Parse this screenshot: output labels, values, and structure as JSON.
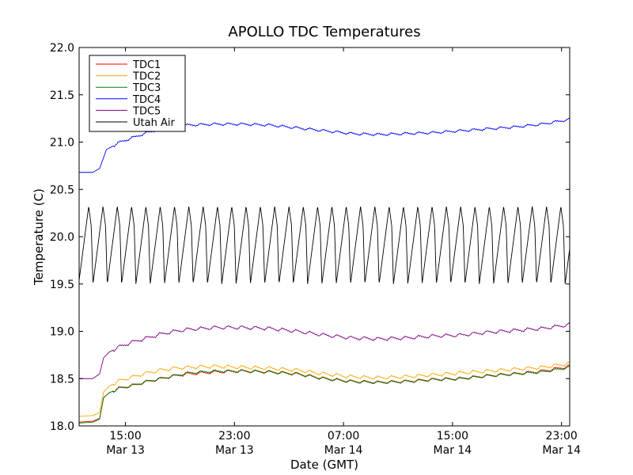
{
  "chart_data": {
    "type": "line",
    "title": "APOLLO TDC Temperatures",
    "xlabel": "Date (GMT)",
    "ylabel": "Temperature (C)",
    "xlim_hours": [
      0,
      36
    ],
    "ylim": [
      18.0,
      22.0
    ],
    "y_ticks": [
      {
        "value": 18.0,
        "label": "18.0"
      },
      {
        "value": 18.5,
        "label": "18.5"
      },
      {
        "value": 19.0,
        "label": "19.0"
      },
      {
        "value": 19.5,
        "label": "19.5"
      },
      {
        "value": 20.0,
        "label": "20.0"
      },
      {
        "value": 20.5,
        "label": "20.5"
      },
      {
        "value": 21.0,
        "label": "21.0"
      },
      {
        "value": 21.5,
        "label": "21.5"
      },
      {
        "value": 22.0,
        "label": "22.0"
      }
    ],
    "x_ticks": [
      {
        "hours": 3.4,
        "time": "15:00",
        "date": "Mar 13"
      },
      {
        "hours": 11.4,
        "time": "23:00",
        "date": "Mar 13"
      },
      {
        "hours": 19.4,
        "time": "07:00",
        "date": "Mar 14"
      },
      {
        "hours": 27.4,
        "time": "15:00",
        "date": "Mar 14"
      },
      {
        "hours": 35.4,
        "time": "23:00",
        "date": "Mar 14"
      }
    ],
    "legend_position": "top-left",
    "series": [
      {
        "name": "TDC1",
        "color": "#ff0000",
        "x": [
          0,
          1,
          1.5,
          1.8,
          2.2,
          3,
          4,
          5,
          6,
          7,
          8,
          10,
          12,
          14,
          16,
          18,
          20,
          22,
          24,
          26,
          28,
          30,
          32,
          34,
          36
        ],
        "y": [
          18.04,
          18.05,
          18.08,
          18.3,
          18.35,
          18.4,
          18.43,
          18.47,
          18.5,
          18.53,
          18.55,
          18.57,
          18.58,
          18.57,
          18.55,
          18.5,
          18.47,
          18.46,
          18.47,
          18.49,
          18.5,
          18.53,
          18.55,
          18.58,
          18.63
        ],
        "amp": 0.03
      },
      {
        "name": "TDC2",
        "color": "#ffa500",
        "x": [
          0,
          1,
          1.5,
          1.8,
          2.2,
          3,
          4,
          5,
          6,
          7,
          8,
          10,
          12,
          14,
          16,
          18,
          20,
          22,
          24,
          26,
          28,
          30,
          32,
          34,
          36
        ],
        "y": [
          18.1,
          18.11,
          18.14,
          18.36,
          18.42,
          18.48,
          18.52,
          18.56,
          18.59,
          18.61,
          18.62,
          18.63,
          18.62,
          18.61,
          18.59,
          18.55,
          18.52,
          18.51,
          18.52,
          18.54,
          18.56,
          18.58,
          18.6,
          18.62,
          18.66
        ],
        "amp": 0.035
      },
      {
        "name": "TDC3",
        "color": "#008000",
        "x": [
          0,
          1,
          1.5,
          1.8,
          2.2,
          3,
          4,
          5,
          6,
          7,
          8,
          10,
          12,
          14,
          16,
          18,
          20,
          22,
          24,
          26,
          28,
          30,
          32,
          34,
          36
        ],
        "y": [
          18.03,
          18.04,
          18.07,
          18.3,
          18.35,
          18.4,
          18.43,
          18.47,
          18.5,
          18.53,
          18.56,
          18.58,
          18.58,
          18.57,
          18.55,
          18.5,
          18.47,
          18.46,
          18.47,
          18.49,
          18.5,
          18.53,
          18.55,
          18.57,
          18.62
        ],
        "amp": 0.025
      },
      {
        "name": "TDC4",
        "color": "#0000ff",
        "x": [
          0,
          1,
          1.5,
          2,
          2.5,
          3,
          4,
          5,
          6,
          7,
          8,
          10,
          12,
          14,
          16,
          18,
          20,
          22,
          24,
          26,
          28,
          30,
          32,
          34,
          36
        ],
        "y": [
          20.68,
          20.68,
          20.72,
          20.92,
          20.96,
          21.0,
          21.05,
          21.1,
          21.14,
          21.17,
          21.18,
          21.19,
          21.19,
          21.18,
          21.15,
          21.12,
          21.09,
          21.08,
          21.09,
          21.1,
          21.12,
          21.14,
          21.16,
          21.19,
          21.24
        ],
        "amp": 0.025
      },
      {
        "name": "TDC5",
        "color": "#800080",
        "x": [
          0,
          1,
          1.5,
          1.8,
          2.2,
          3,
          4,
          5,
          6,
          7,
          8,
          10,
          12,
          14,
          16,
          18,
          20,
          22,
          24,
          26,
          28,
          30,
          32,
          34,
          36
        ],
        "y": [
          18.5,
          18.5,
          18.55,
          18.72,
          18.78,
          18.84,
          18.89,
          18.93,
          18.97,
          19.0,
          19.02,
          19.04,
          19.04,
          19.03,
          19.0,
          18.96,
          18.93,
          18.92,
          18.93,
          18.95,
          18.96,
          18.99,
          19.01,
          19.03,
          19.07
        ],
        "amp": 0.035
      },
      {
        "name": "Utah Air",
        "color": "#000000",
        "low": 19.5,
        "high": 20.32,
        "first_peak_hours": 0.7,
        "period_hours": 1.05
      }
    ]
  }
}
